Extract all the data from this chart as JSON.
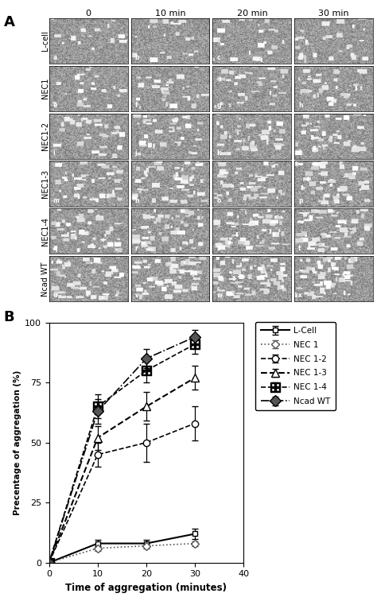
{
  "panel_A": {
    "col_labels": [
      "0",
      "10 min",
      "20 min",
      "30 min"
    ],
    "row_labels": [
      "L-cell",
      "NEC1",
      "NEC1-2",
      "NEC1-3",
      "NEC1-4",
      "Ncad WT"
    ],
    "cell_letters": [
      [
        "a",
        "b",
        "c",
        "d"
      ],
      [
        "e",
        "f",
        "g",
        "h"
      ],
      [
        "i",
        "j",
        "k",
        "l"
      ],
      [
        "m",
        "n",
        "o",
        "p"
      ],
      [
        "q",
        "r",
        "s",
        "t"
      ],
      [
        "u",
        "v",
        "w",
        "x"
      ]
    ]
  },
  "panel_B": {
    "xlabel": "Time of aggregation (minutes)",
    "ylabel": "Precentage of aggregation (%)",
    "xlim": [
      0,
      40
    ],
    "ylim": [
      0,
      100
    ],
    "xticks": [
      0,
      10,
      20,
      30,
      40
    ],
    "yticks": [
      0,
      25,
      50,
      75,
      100
    ],
    "series": [
      {
        "label": "L-Cell",
        "x": [
          0,
          10,
          20,
          30
        ],
        "y": [
          0,
          8,
          8,
          12
        ],
        "yerr": [
          0,
          1.5,
          1.5,
          2
        ],
        "linestyle": "-",
        "marker": "s",
        "color": "#000000",
        "linewidth": 1.5,
        "markersize": 5,
        "markerfacecolor": "white",
        "markeredgecolor": "#000000",
        "special_marker": null
      },
      {
        "label": "NEC 1",
        "x": [
          0,
          10,
          20,
          30
        ],
        "y": [
          0,
          6,
          7,
          8
        ],
        "yerr": [
          0,
          1,
          1,
          1
        ],
        "linestyle": ":",
        "marker": "D",
        "color": "#555555",
        "linewidth": 1.2,
        "markersize": 5,
        "markerfacecolor": "white",
        "markeredgecolor": "#555555",
        "special_marker": null
      },
      {
        "label": "NEC 1-2",
        "x": [
          0,
          10,
          20,
          30
        ],
        "y": [
          0,
          45,
          50,
          58
        ],
        "yerr": [
          0,
          5,
          8,
          7
        ],
        "linestyle": "--",
        "marker": "o",
        "color": "#000000",
        "linewidth": 1.2,
        "markersize": 6,
        "markerfacecolor": "white",
        "markeredgecolor": "#000000",
        "special_marker": null
      },
      {
        "label": "NEC 1-3",
        "x": [
          0,
          10,
          20,
          30
        ],
        "y": [
          0,
          52,
          65,
          77
        ],
        "yerr": [
          0,
          5,
          6,
          5
        ],
        "linestyle": "--",
        "marker": "^",
        "color": "#000000",
        "linewidth": 1.5,
        "markersize": 7,
        "markerfacecolor": "white",
        "markeredgecolor": "#000000",
        "special_marker": null
      },
      {
        "label": "NEC 1-4",
        "x": [
          0,
          10,
          20,
          30
        ],
        "y": [
          0,
          65,
          80,
          91
        ],
        "yerr": [
          0,
          5,
          5,
          4
        ],
        "linestyle": "--",
        "marker": "s",
        "color": "#000000",
        "linewidth": 1.2,
        "markersize": 7,
        "markerfacecolor": "white",
        "markeredgecolor": "#000000",
        "special_marker": "plus_square"
      },
      {
        "label": "Ncad WT",
        "x": [
          0,
          10,
          20,
          30
        ],
        "y": [
          0,
          63,
          85,
          94
        ],
        "yerr": [
          0,
          5,
          4,
          3
        ],
        "linestyle": "-.",
        "marker": "D",
        "color": "#000000",
        "linewidth": 1.2,
        "markersize": 7,
        "markerfacecolor": "#555555",
        "markeredgecolor": "#000000",
        "special_marker": null
      }
    ]
  }
}
